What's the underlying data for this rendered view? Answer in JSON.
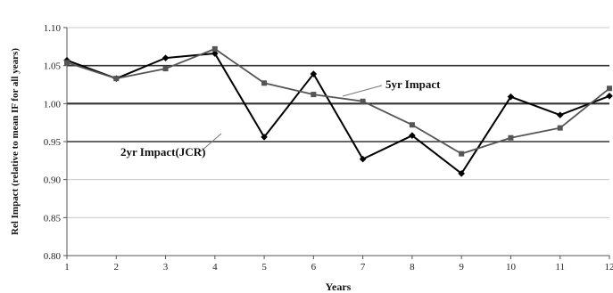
{
  "chart_data": {
    "type": "line",
    "title": "",
    "xlabel": "Years",
    "ylabel": "Rel Impact (relative to mean IF for all years)",
    "x": [
      1,
      2,
      3,
      4,
      5,
      6,
      7,
      8,
      9,
      10,
      11,
      12
    ],
    "xlim": [
      1,
      12
    ],
    "ylim": [
      0.8,
      1.1
    ],
    "yticks": [
      "0.80",
      "0.85",
      "0.90",
      "0.95",
      "1.00",
      "1.05",
      "1.10"
    ],
    "xticks": [
      "1",
      "2",
      "3",
      "4",
      "5",
      "6",
      "7",
      "8",
      "9",
      "10",
      "11",
      "12"
    ],
    "grid": "horizontal",
    "reference_lines": [
      0.95,
      1.0,
      1.05
    ],
    "series": [
      {
        "name": "2yr Impact(JCR)",
        "marker": "diamond",
        "color": "#000000",
        "values": [
          1.057,
          1.033,
          1.06,
          1.066,
          0.956,
          1.039,
          0.927,
          0.958,
          0.908,
          1.009,
          0.985,
          1.01
        ]
      },
      {
        "name": "5yr Impact",
        "marker": "square",
        "color": "#555555",
        "values": [
          1.054,
          1.033,
          1.046,
          1.072,
          1.027,
          1.012,
          1.003,
          0.972,
          0.934,
          0.955,
          0.968,
          1.02
        ]
      }
    ],
    "annotations": [
      {
        "text": "5yr Impact",
        "series": 1
      },
      {
        "text": "2yr Impact(JCR)",
        "series": 0
      }
    ]
  }
}
